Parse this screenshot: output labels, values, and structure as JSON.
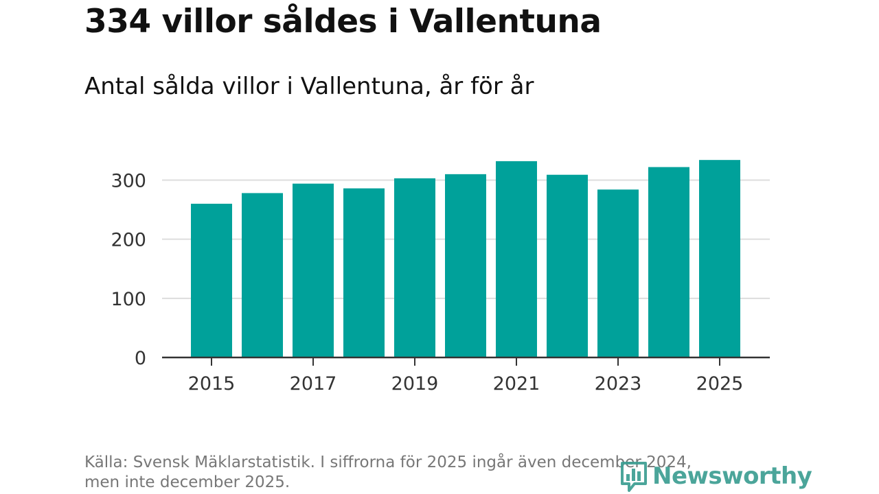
{
  "header": {
    "title": "334 villor såldes i Vallentuna",
    "subtitle": "Antal sålda villor i Vallentuna, år för år"
  },
  "footer": {
    "source_line1": "Källa: Svensk Mäklarstatistik. I siffrorna för 2025 ingår även december 2024,",
    "source_line2": "men inte december 2025.",
    "logo_text": "Newsworthy",
    "logo_icon": "bar-chart-icon"
  },
  "colors": {
    "bar": "#00a19a",
    "gridline": "#dddddd",
    "axis": "#333333",
    "logo": "#3c9e92"
  },
  "chart_data": {
    "type": "bar",
    "title": "334 villor såldes i Vallentuna",
    "subtitle": "Antal sålda villor i Vallentuna, år för år",
    "xlabel": "",
    "ylabel": "",
    "categories": [
      "2015",
      "2016",
      "2017",
      "2018",
      "2019",
      "2020",
      "2021",
      "2022",
      "2023",
      "2024",
      "2025"
    ],
    "values": [
      260,
      278,
      294,
      286,
      303,
      310,
      332,
      309,
      284,
      322,
      334
    ],
    "ylim": [
      0,
      340
    ],
    "yticks": [
      0,
      100,
      200,
      300
    ],
    "xtick_labels": [
      "2015",
      "2017",
      "2019",
      "2021",
      "2023",
      "2025"
    ],
    "grid": true,
    "legend": "none"
  }
}
